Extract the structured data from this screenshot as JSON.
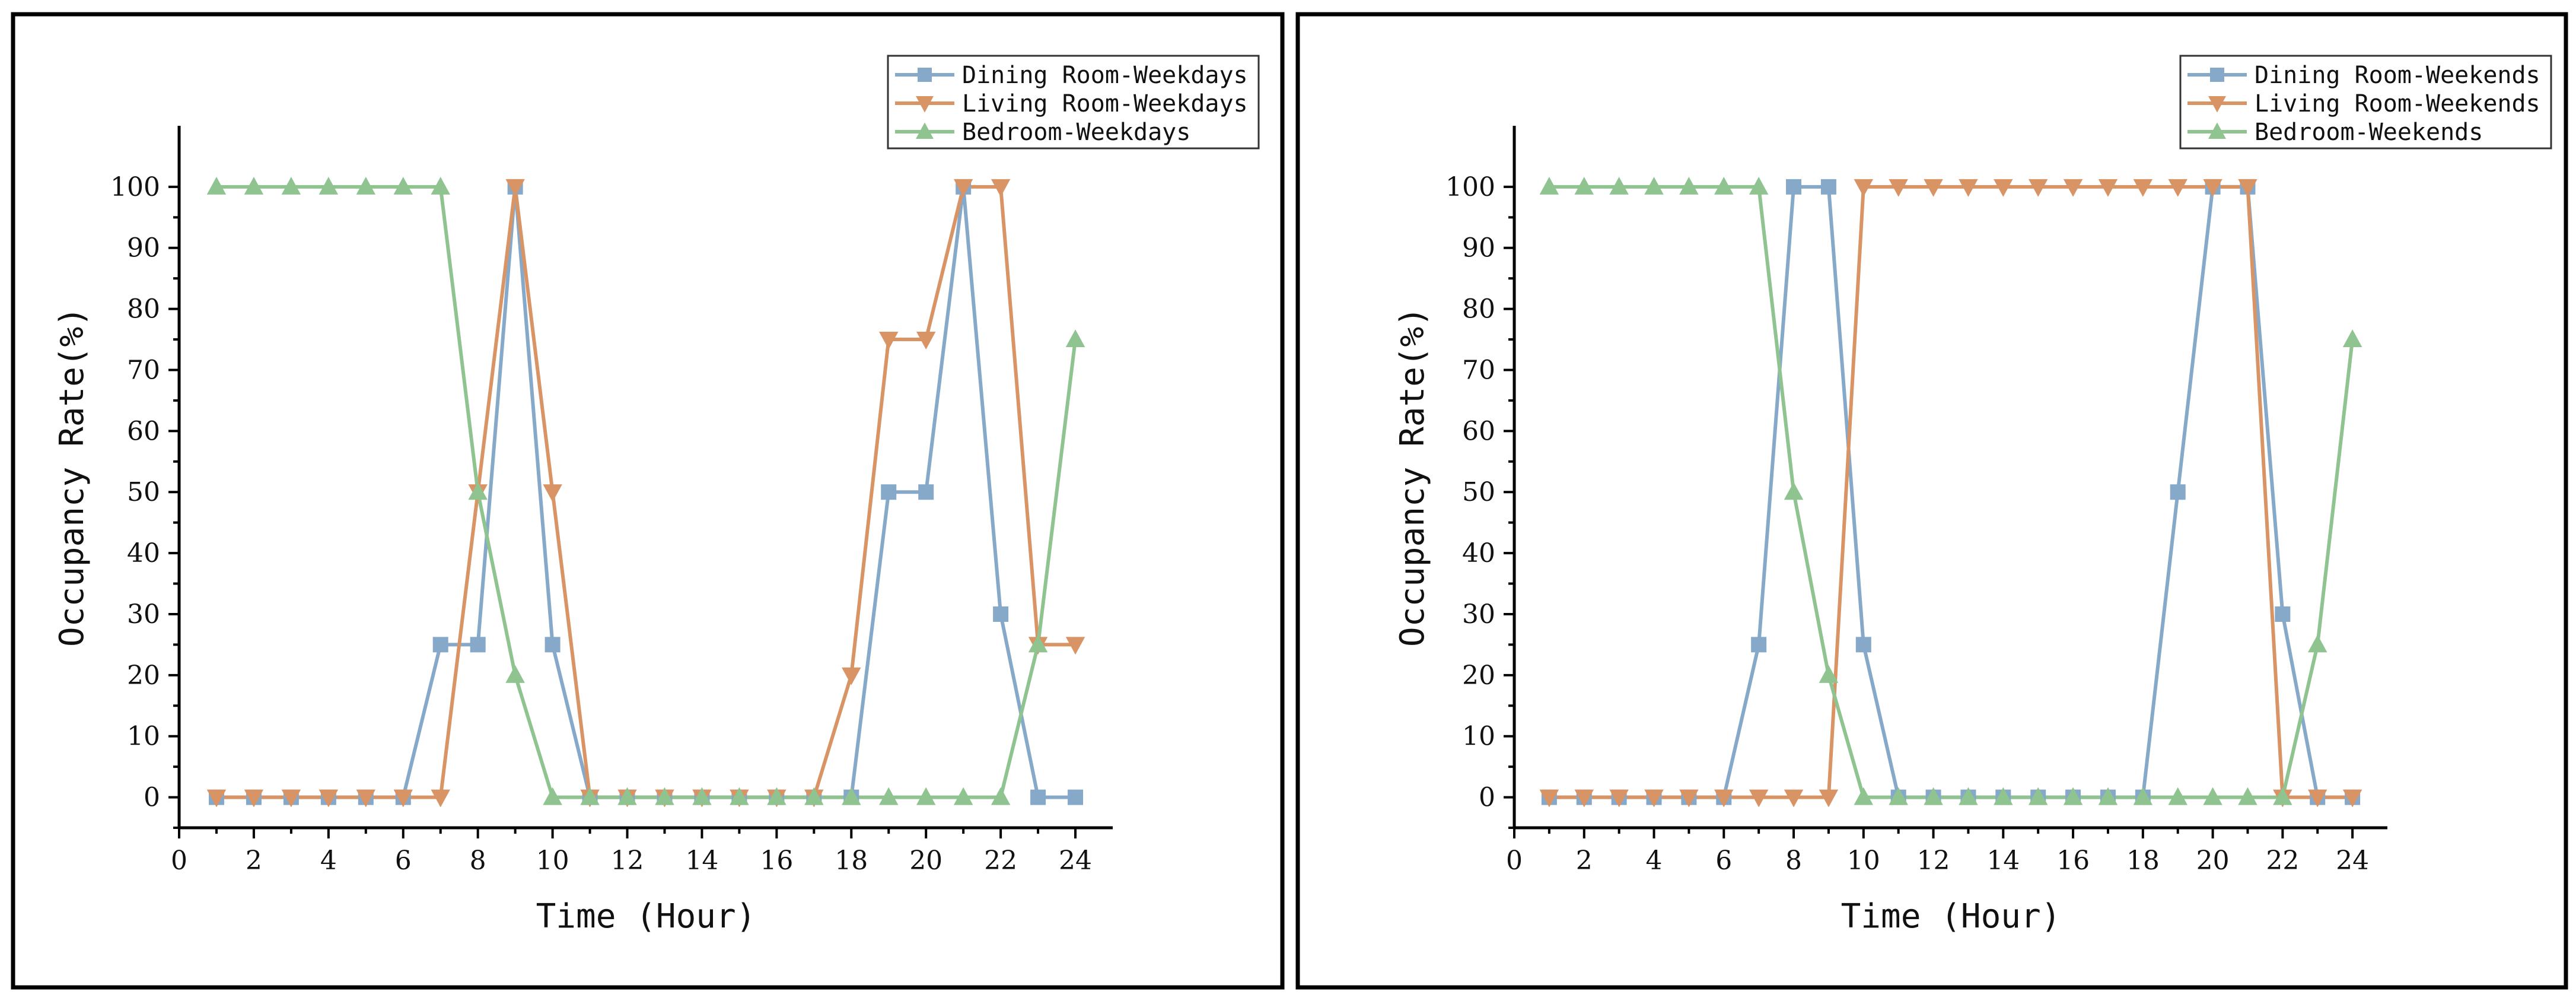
{
  "colors": {
    "dining": "#86a8c9",
    "living": "#d99466",
    "bedroom": "#8fc490"
  },
  "chart_data": [
    {
      "type": "line",
      "title": "",
      "xlabel": "Time (Hour)",
      "ylabel": "Occupancy Rate(%)",
      "xlim": [
        0,
        25
      ],
      "ylim": [
        -5,
        110
      ],
      "xticks": [
        0,
        2,
        4,
        6,
        8,
        10,
        12,
        14,
        16,
        18,
        20,
        22,
        24
      ],
      "yticks": [
        0,
        10,
        20,
        30,
        40,
        50,
        60,
        70,
        80,
        90,
        100
      ],
      "legend_position": "top-right",
      "x": [
        1,
        2,
        3,
        4,
        5,
        6,
        7,
        8,
        9,
        10,
        11,
        12,
        13,
        14,
        15,
        16,
        17,
        18,
        19,
        20,
        21,
        22,
        23,
        24
      ],
      "series": [
        {
          "name": "Dining Room-Weekdays",
          "marker": "square",
          "color_key": "dining",
          "values": [
            0,
            0,
            0,
            0,
            0,
            0,
            25,
            25,
            100,
            25,
            0,
            0,
            0,
            0,
            0,
            0,
            0,
            0,
            50,
            50,
            100,
            30,
            0,
            0
          ]
        },
        {
          "name": "Living Room-Weekdays",
          "marker": "triangle-down",
          "color_key": "living",
          "values": [
            0,
            0,
            0,
            0,
            0,
            0,
            0,
            50,
            100,
            50,
            0,
            0,
            0,
            0,
            0,
            0,
            0,
            20,
            75,
            75,
            100,
            100,
            25,
            25
          ]
        },
        {
          "name": "Bedroom-Weekdays",
          "marker": "triangle-up",
          "color_key": "bedroom",
          "values": [
            100,
            100,
            100,
            100,
            100,
            100,
            100,
            50,
            20,
            0,
            0,
            0,
            0,
            0,
            0,
            0,
            0,
            0,
            0,
            0,
            0,
            0,
            25,
            75
          ]
        }
      ]
    },
    {
      "type": "line",
      "title": "",
      "xlabel": "Time (Hour)",
      "ylabel": "Occupancy Rate(%)",
      "xlim": [
        0,
        25
      ],
      "ylim": [
        -5,
        110
      ],
      "xticks": [
        0,
        2,
        4,
        6,
        8,
        10,
        12,
        14,
        16,
        18,
        20,
        22,
        24
      ],
      "yticks": [
        0,
        10,
        20,
        30,
        40,
        50,
        60,
        70,
        80,
        90,
        100
      ],
      "legend_position": "top-right",
      "x": [
        1,
        2,
        3,
        4,
        5,
        6,
        7,
        8,
        9,
        10,
        11,
        12,
        13,
        14,
        15,
        16,
        17,
        18,
        19,
        20,
        21,
        22,
        23,
        24
      ],
      "series": [
        {
          "name": "Dining Room-Weekends",
          "marker": "square",
          "color_key": "dining",
          "values": [
            0,
            0,
            0,
            0,
            0,
            0,
            25,
            100,
            100,
            25,
            0,
            0,
            0,
            0,
            0,
            0,
            0,
            0,
            50,
            100,
            100,
            30,
            0,
            0
          ]
        },
        {
          "name": "Living Room-Weekends",
          "marker": "triangle-down",
          "color_key": "living",
          "values": [
            0,
            0,
            0,
            0,
            0,
            0,
            0,
            0,
            0,
            100,
            100,
            100,
            100,
            100,
            100,
            100,
            100,
            100,
            100,
            100,
            100,
            0,
            0,
            0
          ]
        },
        {
          "name": "Bedroom-Weekends",
          "marker": "triangle-up",
          "color_key": "bedroom",
          "values": [
            100,
            100,
            100,
            100,
            100,
            100,
            100,
            50,
            20,
            0,
            0,
            0,
            0,
            0,
            0,
            0,
            0,
            0,
            0,
            0,
            0,
            0,
            25,
            75
          ]
        }
      ]
    }
  ]
}
